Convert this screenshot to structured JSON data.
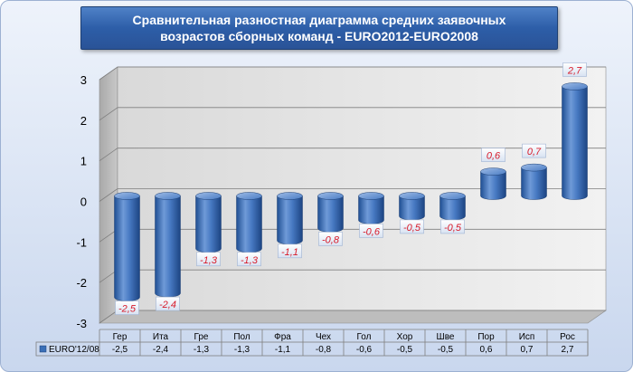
{
  "title": "Сравнительная разностная диаграмма средних заявочных возрастов сборных команд - EURO2012-EURO2008",
  "chart_data": {
    "type": "bar",
    "title": "Сравнительная разностная диаграмма средних заявочных возрастов сборных команд - EURO2012-EURO2008",
    "categories": [
      "Гер",
      "Ита",
      "Гре",
      "Пол",
      "Фра",
      "Чех",
      "Гол",
      "Хор",
      "Шве",
      "Пор",
      "Исп",
      "Рос"
    ],
    "series": [
      {
        "name": "EURO'12/08",
        "values": [
          -2.5,
          -2.4,
          -1.3,
          -1.3,
          -1.1,
          -0.8,
          -0.6,
          -0.5,
          -0.5,
          0.6,
          0.7,
          2.7
        ],
        "labels": [
          "-2,5",
          "-2,4",
          "-1,3",
          "-1,3",
          "-1,1",
          "-0,8",
          "-0,6",
          "-0,5",
          "-0,5",
          "0,6",
          "0,7",
          "2,7"
        ]
      }
    ],
    "ylim": [
      -3,
      3
    ],
    "yticks": [
      "3",
      "2",
      "1",
      "0",
      "-1",
      "-2",
      "-3"
    ],
    "grid": true,
    "data_table": true,
    "legend": "data-table-left",
    "colors": {
      "bar": "#3a6fb7",
      "label_text": "#d81b2a",
      "title_bg": "#2d5ea8"
    }
  }
}
